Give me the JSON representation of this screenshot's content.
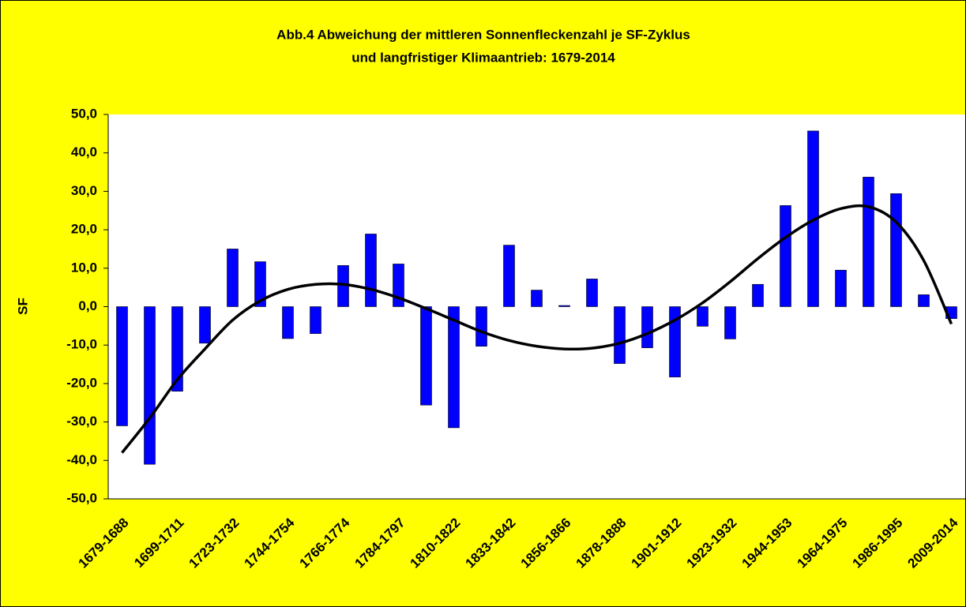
{
  "chart_data": {
    "type": "bar",
    "title": [
      "Abb.4 Abweichung der mittleren Sonnenfleckenzahl je SF-Zyklus",
      "und langfristiger Klimaantrieb: 1679-2014"
    ],
    "y_label": "SF",
    "categories": [
      "1679-1688",
      null,
      "1699-1711",
      null,
      "1723-1732",
      null,
      "1744-1754",
      null,
      "1766-1774",
      null,
      "1784-1797",
      null,
      "1810-1822",
      null,
      "1833-1842",
      null,
      "1856-1866",
      null,
      "1878-1888",
      null,
      "1901-1912",
      null,
      "1923-1932",
      null,
      "1944-1953",
      null,
      "1964-1975",
      null,
      "1986-1995",
      null,
      "2009-2014"
    ],
    "series": [
      {
        "type": "bar",
        "color": "#0000ff",
        "values": [
          -31,
          -41,
          -22,
          -9.5,
          15,
          11.7,
          -8.3,
          -7,
          10.7,
          18.9,
          11.1,
          -25.6,
          -31.5,
          -10.3,
          16,
          4.3,
          0.3,
          7.2,
          -14.8,
          -10.7,
          -18.3,
          -5.1,
          -8.4,
          5.8,
          26.3,
          45.7,
          9.5,
          33.7,
          29.4,
          3.1,
          -3.1
        ]
      },
      {
        "type": "line",
        "color": "#000000",
        "values": [
          -38,
          -29,
          -19,
          -11,
          -3.5,
          1.5,
          4.5,
          5.8,
          5.8,
          4.5,
          2.3,
          -0.5,
          -3.5,
          -6.5,
          -8.8,
          -10.3,
          -11,
          -10.8,
          -9.5,
          -7,
          -3.5,
          1,
          6.5,
          12.5,
          18,
          22.5,
          25.5,
          26,
          22,
          12,
          -4.5
        ]
      }
    ],
    "ylim": [
      -50,
      50
    ],
    "yticks": [
      {
        "value": -50,
        "label": "-50,0"
      },
      {
        "value": -40,
        "label": "-40,0"
      },
      {
        "value": -30,
        "label": "-30,0"
      },
      {
        "value": -20,
        "label": "-20,0"
      },
      {
        "value": -10,
        "label": "-10,0"
      },
      {
        "value": 0,
        "label": "0,0"
      },
      {
        "value": 10,
        "label": "10,0"
      },
      {
        "value": 20,
        "label": "20,0"
      },
      {
        "value": 30,
        "label": "30,0"
      },
      {
        "value": 40,
        "label": "40,0"
      },
      {
        "value": 50,
        "label": "50,0"
      }
    ],
    "grid": false
  }
}
